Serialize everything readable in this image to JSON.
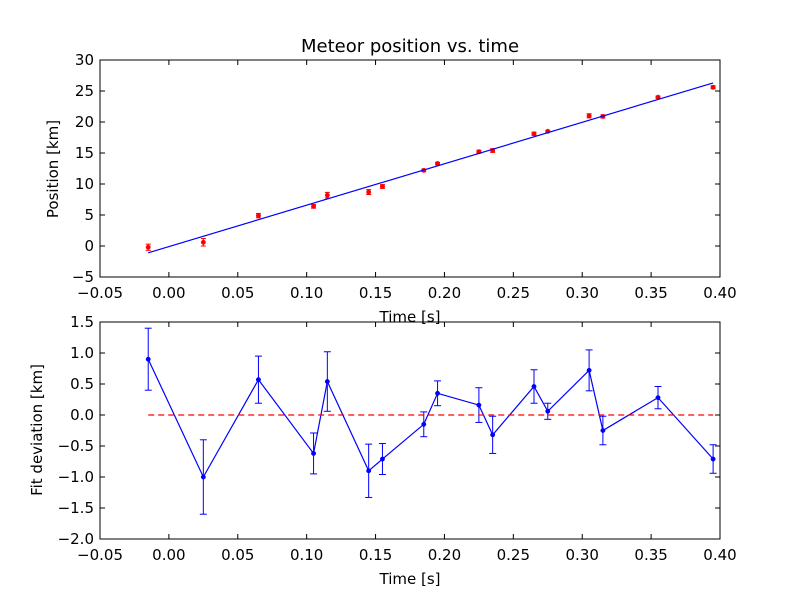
{
  "chart_data": [
    {
      "type": "scatter",
      "title": "Meteor position vs. time",
      "xlabel": "Time [s]",
      "ylabel": "Position [km]",
      "xlim": [
        -0.05,
        0.4
      ],
      "ylim": [
        -5,
        30
      ],
      "xticks": [
        "−0.05",
        "0.00",
        "0.05",
        "0.10",
        "0.15",
        "0.20",
        "0.25",
        "0.30",
        "0.35",
        "0.40"
      ],
      "xtick_values": [
        -0.05,
        0.0,
        0.05,
        0.1,
        0.15,
        0.2,
        0.25,
        0.3,
        0.35,
        0.4
      ],
      "yticks": [
        "−5",
        "0",
        "5",
        "10",
        "15",
        "20",
        "25",
        "30"
      ],
      "ytick_values": [
        -5,
        0,
        5,
        10,
        15,
        20,
        25,
        30
      ],
      "grid": false,
      "series": [
        {
          "kind": "errorbar-points",
          "color": "#ff0000",
          "x": [
            -0.015,
            0.025,
            0.065,
            0.105,
            0.115,
            0.145,
            0.155,
            0.185,
            0.195,
            0.225,
            0.235,
            0.265,
            0.275,
            0.305,
            0.315,
            0.355,
            0.395
          ],
          "y": [
            -0.2,
            0.6,
            4.9,
            6.4,
            8.2,
            8.7,
            9.6,
            12.2,
            13.3,
            15.2,
            15.4,
            18.1,
            18.5,
            21.0,
            20.9,
            24.0,
            25.6
          ],
          "yerr": [
            0.5,
            0.6,
            0.35,
            0.3,
            0.45,
            0.4,
            0.3,
            0.2,
            0.2,
            0.25,
            0.3,
            0.25,
            0.15,
            0.33,
            0.25,
            0.17,
            0.24
          ]
        },
        {
          "kind": "fit-line",
          "color": "#0000ff",
          "x": [
            -0.015,
            0.395
          ],
          "y": [
            -1.1,
            26.3
          ]
        }
      ]
    },
    {
      "type": "line",
      "title": "",
      "xlabel": "Time [s]",
      "ylabel": "Fit deviation [km]",
      "xlim": [
        -0.05,
        0.4
      ],
      "ylim": [
        -2.0,
        1.5
      ],
      "xticks": [
        "−0.05",
        "0.00",
        "0.05",
        "0.10",
        "0.15",
        "0.20",
        "0.25",
        "0.30",
        "0.35",
        "0.40"
      ],
      "xtick_values": [
        -0.05,
        0.0,
        0.05,
        0.1,
        0.15,
        0.2,
        0.25,
        0.3,
        0.35,
        0.4
      ],
      "yticks": [
        "−2.0",
        "−1.5",
        "−1.0",
        "−0.5",
        "0.0",
        "0.5",
        "1.0",
        "1.5"
      ],
      "ytick_values": [
        -2.0,
        -1.5,
        -1.0,
        -0.5,
        0.0,
        0.5,
        1.0,
        1.5
      ],
      "grid": false,
      "series": [
        {
          "kind": "errorbar-line",
          "color": "#0000ff",
          "x": [
            -0.015,
            0.025,
            0.065,
            0.105,
            0.115,
            0.145,
            0.155,
            0.185,
            0.195,
            0.225,
            0.235,
            0.265,
            0.275,
            0.305,
            0.315,
            0.355,
            0.395
          ],
          "y": [
            0.9,
            -1.0,
            0.57,
            -0.62,
            0.54,
            -0.9,
            -0.71,
            -0.15,
            0.35,
            0.16,
            -0.32,
            0.46,
            0.06,
            0.72,
            -0.25,
            0.28,
            -0.71
          ],
          "yerr": [
            0.5,
            0.6,
            0.38,
            0.33,
            0.48,
            0.43,
            0.25,
            0.2,
            0.2,
            0.28,
            0.3,
            0.27,
            0.13,
            0.33,
            0.23,
            0.18,
            0.23
          ]
        },
        {
          "kind": "reference-line",
          "color": "#ff0000",
          "dashed": true,
          "x": [
            -0.015,
            0.395
          ],
          "y": [
            0.0,
            0.0
          ]
        }
      ]
    }
  ]
}
